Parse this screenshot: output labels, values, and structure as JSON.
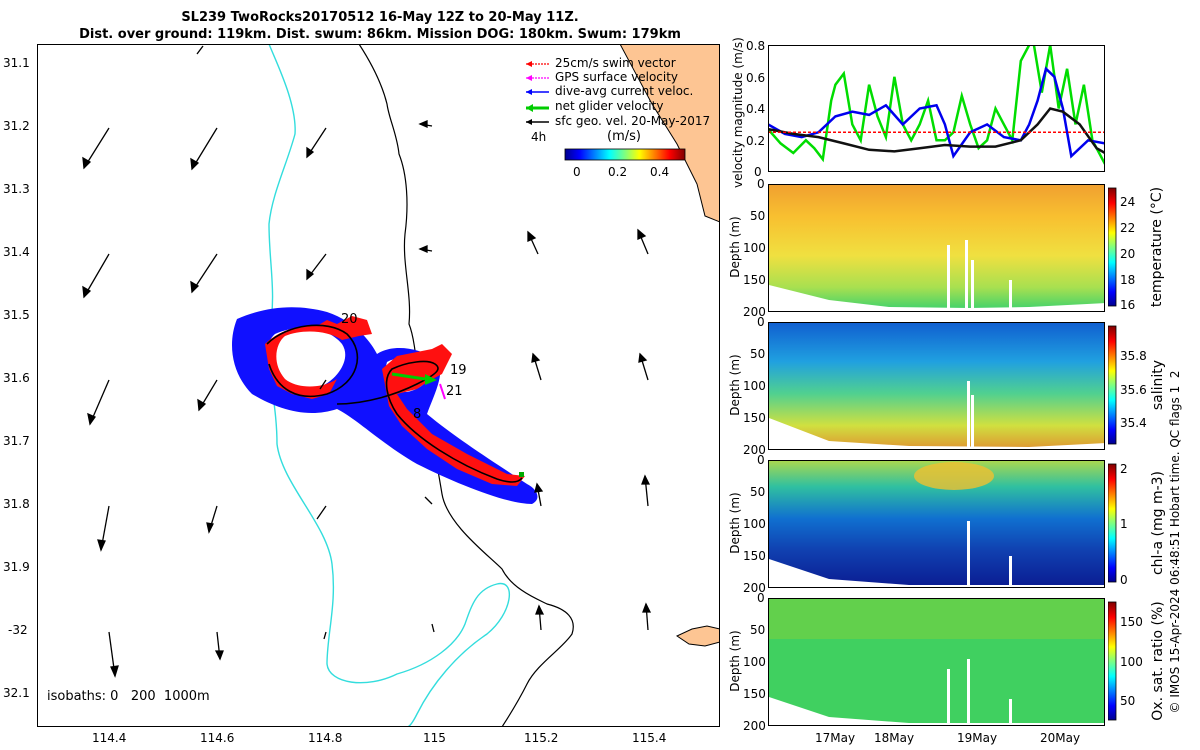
{
  "header": {
    "title_line1": "SL239 TwoRocks20170512 16-May 12Z to 20-May 11Z.",
    "title_line2": "Dist. over ground: 119km. Dist. swum: 86km. Mission DOG: 180km. Swum: 179km"
  },
  "map": {
    "lat_ticks": [
      "31.1",
      "31.2",
      "31.3",
      "31.4",
      "31.5",
      "31.6",
      "31.7",
      "31.8",
      "31.9",
      "-32",
      "32.1"
    ],
    "lon_ticks": [
      "114.4",
      "114.6",
      "114.8",
      "115",
      "115.2",
      "115.4"
    ],
    "legend": [
      {
        "label": "25cm/s swim vector",
        "color": "#ff0000"
      },
      {
        "label": "GPS surface velocity",
        "color": "#ff00ff"
      },
      {
        "label": "dive-avg current veloc.",
        "color": "#0000ff"
      },
      {
        "label": "net glider velocity",
        "color": "#00cc00"
      },
      {
        "label": "sfc geo. vel. 20-May-2017",
        "color": "#000000"
      }
    ],
    "legend_4h": "4h",
    "colorbar_title": "(m/s)",
    "colorbar_ticks": [
      "0",
      "0.2",
      "0.4"
    ],
    "isobaths_label": "isobaths: 0   200  1000m",
    "day_labels": [
      "19",
      "21",
      "8",
      "20"
    ],
    "colors": {
      "land": "#fdc593",
      "isobath_200": "#33dddd",
      "coast": "#000000",
      "track": "#0000ff",
      "swim": "#ff0000"
    }
  },
  "panels": {
    "x_ticks": [
      "17May",
      "18May",
      "19May",
      "20May"
    ],
    "velocity": {
      "ylabel": "velocity magnitude (m/s)",
      "y_ticks": [
        "0",
        "0.2",
        "0.4",
        "0.6",
        "0.8"
      ]
    },
    "temperature": {
      "label": "temperature (°C)",
      "ylabel": "Depth (m)",
      "depth_ticks": [
        "0",
        "50",
        "100",
        "150",
        "200"
      ],
      "cbar_ticks": [
        "24",
        "22",
        "20",
        "18",
        "16"
      ]
    },
    "salinity": {
      "label": "salinity",
      "ylabel": "Depth (m)",
      "depth_ticks": [
        "0",
        "50",
        "100",
        "150",
        "200"
      ],
      "cbar_ticks": [
        "35.8",
        "35.6",
        "35.4"
      ]
    },
    "chla": {
      "label": "chl-a (mg m-3)",
      "ylabel": "Depth (m)",
      "depth_ticks": [
        "0",
        "50",
        "100",
        "150",
        "200"
      ],
      "cbar_ticks": [
        "2",
        "1",
        "0"
      ]
    },
    "oxygen": {
      "label": "Ox. sat. ratio (%)",
      "ylabel": "Depth (m)",
      "depth_ticks": [
        "0",
        "50",
        "100",
        "150",
        "200"
      ],
      "cbar_ticks": [
        "150",
        "100",
        "50"
      ]
    }
  },
  "footer_credit": "© IMOS 15-Apr-2024 06:48:51 Hobart time. QC flags 1  2",
  "chart_data": [
    {
      "type": "line",
      "title": "velocity magnitude",
      "ylabel": "velocity magnitude (m/s)",
      "ylim": [
        0,
        0.8
      ],
      "xlim": [
        0,
        4
      ],
      "x_tick_labels": [
        "17May",
        "18May",
        "19May",
        "20May"
      ],
      "series": [
        {
          "name": "net glider velocity",
          "color": "#00dd00",
          "x": [
            0.0,
            0.15,
            0.3,
            0.45,
            0.55,
            0.65,
            0.75,
            0.8,
            0.9,
            1.0,
            1.1,
            1.2,
            1.3,
            1.4,
            1.5,
            1.6,
            1.7,
            1.8,
            1.9,
            2.0,
            2.1,
            2.2,
            2.3,
            2.4,
            2.5,
            2.6,
            2.7,
            2.8,
            2.9,
            3.0,
            3.1,
            3.15,
            3.25,
            3.35,
            3.45,
            3.55,
            3.65,
            3.75,
            3.85,
            4.0
          ],
          "y": [
            0.27,
            0.18,
            0.12,
            0.2,
            0.15,
            0.08,
            0.45,
            0.55,
            0.62,
            0.3,
            0.2,
            0.55,
            0.35,
            0.22,
            0.6,
            0.3,
            0.2,
            0.3,
            0.45,
            0.2,
            0.2,
            0.25,
            0.48,
            0.3,
            0.15,
            0.2,
            0.4,
            0.3,
            0.2,
            0.7,
            0.8,
            0.82,
            0.5,
            0.8,
            0.4,
            0.65,
            0.3,
            0.55,
            0.2,
            0.05
          ]
        },
        {
          "name": "dive-avg current veloc.",
          "color": "#0000ee",
          "x": [
            0.0,
            0.2,
            0.4,
            0.6,
            0.8,
            1.0,
            1.2,
            1.4,
            1.6,
            1.8,
            2.0,
            2.1,
            2.2,
            2.4,
            2.6,
            2.8,
            3.0,
            3.1,
            3.2,
            3.3,
            3.4,
            3.5,
            3.6,
            3.8,
            4.0
          ],
          "y": [
            0.3,
            0.24,
            0.22,
            0.25,
            0.35,
            0.38,
            0.36,
            0.42,
            0.3,
            0.4,
            0.42,
            0.3,
            0.1,
            0.25,
            0.3,
            0.22,
            0.2,
            0.3,
            0.45,
            0.65,
            0.6,
            0.4,
            0.1,
            0.2,
            0.18
          ]
        },
        {
          "name": "sfc geo. vel.",
          "color": "#111111",
          "x": [
            0.0,
            0.3,
            0.6,
            0.9,
            1.2,
            1.5,
            1.8,
            2.1,
            2.4,
            2.7,
            3.0,
            3.2,
            3.35,
            3.5,
            3.7,
            3.9,
            4.0
          ],
          "y": [
            0.27,
            0.24,
            0.22,
            0.18,
            0.14,
            0.13,
            0.15,
            0.17,
            0.16,
            0.16,
            0.2,
            0.3,
            0.4,
            0.38,
            0.3,
            0.15,
            0.12
          ]
        },
        {
          "name": "25cm/s swim vector",
          "color": "#ff0000",
          "x": [
            0.0,
            4.0
          ],
          "y": [
            0.25,
            0.25
          ]
        }
      ]
    }
  ]
}
